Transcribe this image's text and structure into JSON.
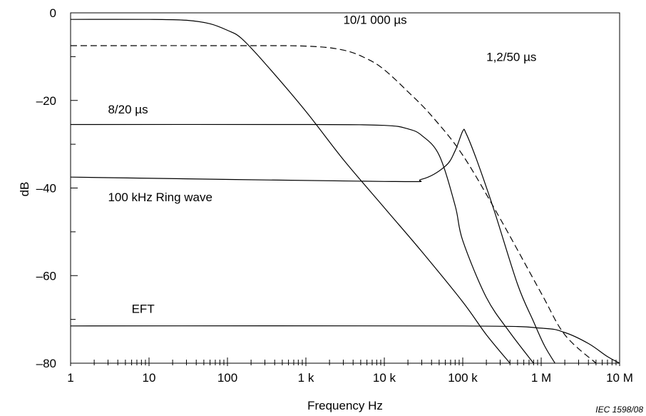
{
  "chart_data": {
    "type": "line",
    "title": "",
    "xlabel": "Frequency  Hz",
    "ylabel": "dB",
    "xscale": "log",
    "xlim": [
      1,
      10000000
    ],
    "ylim": [
      -80,
      0
    ],
    "x_ticks": [
      {
        "value": 1,
        "label": "1"
      },
      {
        "value": 10,
        "label": "10"
      },
      {
        "value": 100,
        "label": "100"
      },
      {
        "value": 1000,
        "label": "1 k"
      },
      {
        "value": 10000,
        "label": "10 k"
      },
      {
        "value": 100000,
        "label": "100 k"
      },
      {
        "value": 1000000,
        "label": "1 M"
      },
      {
        "value": 10000000,
        "label": "10 M"
      }
    ],
    "y_ticks": [
      {
        "value": 0,
        "label": "0"
      },
      {
        "value": -20,
        "label": "–20"
      },
      {
        "value": -40,
        "label": "–40"
      },
      {
        "value": -60,
        "label": "–60"
      },
      {
        "value": -80,
        "label": "–80"
      }
    ],
    "grid": false,
    "series": [
      {
        "name": "10/1 000 µs",
        "style": "solid",
        "color": "#000000",
        "points": [
          [
            1,
            -1.5
          ],
          [
            10,
            -1.5
          ],
          [
            30,
            -1.7
          ],
          [
            60,
            -2.5
          ],
          [
            100,
            -4
          ],
          [
            150,
            -5.8
          ],
          [
            300,
            -11.5
          ],
          [
            1000,
            -22.5
          ],
          [
            3000,
            -33.5
          ],
          [
            10000,
            -44.5
          ],
          [
            30000,
            -54.5
          ],
          [
            100000,
            -66
          ],
          [
            200000,
            -73.5
          ],
          [
            400000,
            -80
          ]
        ]
      },
      {
        "name": "1,2/50 µs",
        "style": "dashed",
        "color": "#000000",
        "points": [
          [
            1,
            -7.5
          ],
          [
            100,
            -7.5
          ],
          [
            1000,
            -7.6
          ],
          [
            3000,
            -8.5
          ],
          [
            6000,
            -10.5
          ],
          [
            10000,
            -13
          ],
          [
            20000,
            -18
          ],
          [
            40000,
            -23.5
          ],
          [
            100000,
            -32.5
          ],
          [
            300000,
            -47
          ],
          [
            1000000,
            -64
          ],
          [
            2000000,
            -73.5
          ],
          [
            5000000,
            -80
          ]
        ]
      },
      {
        "name": "8/20 µs",
        "style": "solid",
        "color": "#000000",
        "points": [
          [
            1,
            -25.5
          ],
          [
            1000,
            -25.5
          ],
          [
            10000,
            -25.7
          ],
          [
            20000,
            -26.5
          ],
          [
            30000,
            -28
          ],
          [
            50000,
            -32.5
          ],
          [
            80000,
            -44
          ],
          [
            100000,
            -52
          ],
          [
            200000,
            -65
          ],
          [
            400000,
            -73
          ],
          [
            800000,
            -80
          ]
        ]
      },
      {
        "name": "100 kHz Ring wave",
        "style": "solid",
        "color": "#000000",
        "points": [
          [
            1,
            -37.5
          ],
          [
            10000,
            -38.5
          ],
          [
            30000,
            -38
          ],
          [
            60000,
            -35
          ],
          [
            80000,
            -31.5
          ],
          [
            100000,
            -27
          ],
          [
            110000,
            -27.5
          ],
          [
            150000,
            -33.5
          ],
          [
            250000,
            -45
          ],
          [
            500000,
            -62
          ],
          [
            800000,
            -70.5
          ],
          [
            1100000,
            -76
          ],
          [
            1500000,
            -80
          ]
        ]
      },
      {
        "name": "EFT",
        "style": "solid",
        "color": "#000000",
        "points": [
          [
            1,
            -71.5
          ],
          [
            100000,
            -71.5
          ],
          [
            1000000,
            -72
          ],
          [
            2000000,
            -73
          ],
          [
            4000000,
            -75.5
          ],
          [
            7000000,
            -78.5
          ],
          [
            10000000,
            -80
          ]
        ]
      }
    ],
    "annotations": [
      {
        "text": "10/1 000 µs",
        "x": 3000,
        "y": -2.5
      },
      {
        "text": "1,2/50 µs",
        "x": 200000,
        "y": -11
      },
      {
        "text": "8/20 µs",
        "x": 3,
        "y": -23
      },
      {
        "text": "100 kHz Ring wave",
        "x": 3,
        "y": -43
      },
      {
        "text": "EFT",
        "x": 6,
        "y": -68.5
      }
    ],
    "credit": "IEC   1598/08"
  }
}
